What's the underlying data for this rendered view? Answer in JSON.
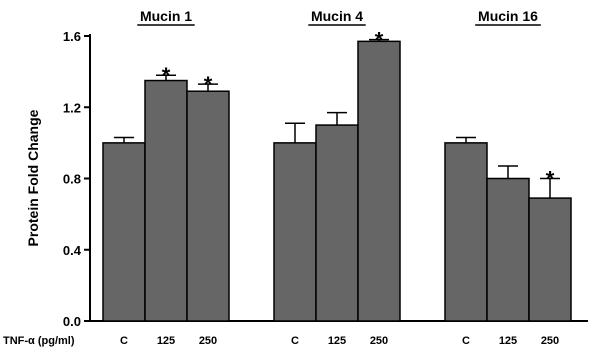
{
  "chart_data": {
    "type": "bar",
    "title": "",
    "ylabel": "Protein Fold Change",
    "xlabel": "TNF-α (pg/ml)",
    "ylim": [
      0,
      1.6
    ],
    "yticks": [
      "0.0",
      "0.4",
      "0.8",
      "1.2",
      "1.6"
    ],
    "bar_color": "#666666",
    "groups": [
      {
        "title": "Mucin 1",
        "categories": [
          "C",
          "125",
          "250"
        ],
        "values": [
          1.0,
          1.35,
          1.29
        ],
        "errors": [
          0.03,
          0.03,
          0.04
        ],
        "significant": [
          "",
          "*",
          "*"
        ]
      },
      {
        "title": "Mucin 4",
        "categories": [
          "C",
          "125",
          "250"
        ],
        "values": [
          1.0,
          1.1,
          1.57
        ],
        "errors": [
          0.11,
          0.07,
          0.01
        ],
        "significant": [
          "",
          "",
          "*"
        ]
      },
      {
        "title": "Mucin 16",
        "categories": [
          "C",
          "125",
          "250"
        ],
        "values": [
          1.0,
          0.8,
          0.69
        ],
        "errors": [
          0.03,
          0.07,
          0.11
        ],
        "significant": [
          "",
          "",
          "*"
        ]
      }
    ]
  }
}
